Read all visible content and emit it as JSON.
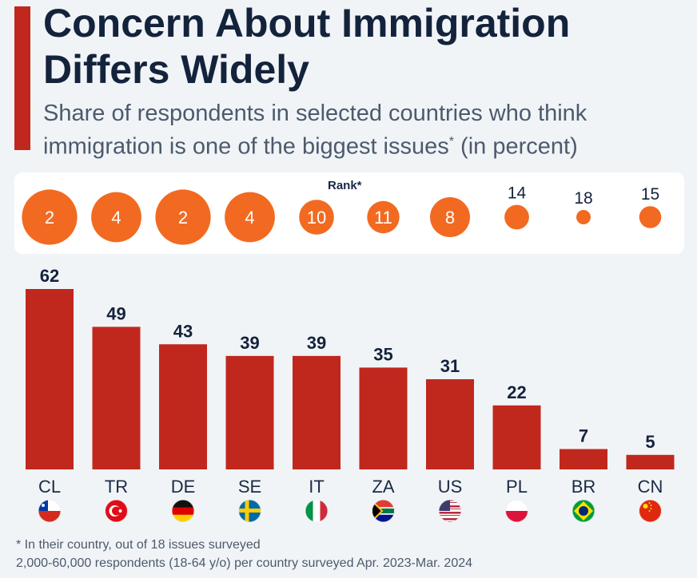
{
  "title": "Concern About Immigration Differs Widely",
  "subtitle": "Share of respondents in selected countries who think immigration is one of the biggest issues",
  "subtitle_mark": "*",
  "subtitle_unit": " (in percent)",
  "rank_label": "Rank*",
  "footnotes": [
    "* In their country, out of 18 issues surveyed",
    "2,000-60,000 respondents (18-64 y/o) per country surveyed Apr. 2023-Mar. 2024"
  ],
  "chart_data": {
    "type": "bar",
    "categories": [
      "CL",
      "TR",
      "DE",
      "SE",
      "IT",
      "ZA",
      "US",
      "PL",
      "BR",
      "CN"
    ],
    "values": [
      62,
      49,
      43,
      39,
      39,
      35,
      31,
      22,
      7,
      5
    ],
    "ranks": [
      2,
      4,
      2,
      4,
      10,
      11,
      8,
      14,
      18,
      15
    ],
    "ylim": [
      0,
      62
    ],
    "bar_color": "#c0281e",
    "rank_color": "#f26a21",
    "flags": [
      "chile-flag-icon",
      "turkey-flag-icon",
      "germany-flag-icon",
      "sweden-flag-icon",
      "italy-flag-icon",
      "south-africa-flag-icon",
      "usa-flag-icon",
      "poland-flag-icon",
      "brazil-flag-icon",
      "china-flag-icon"
    ]
  }
}
